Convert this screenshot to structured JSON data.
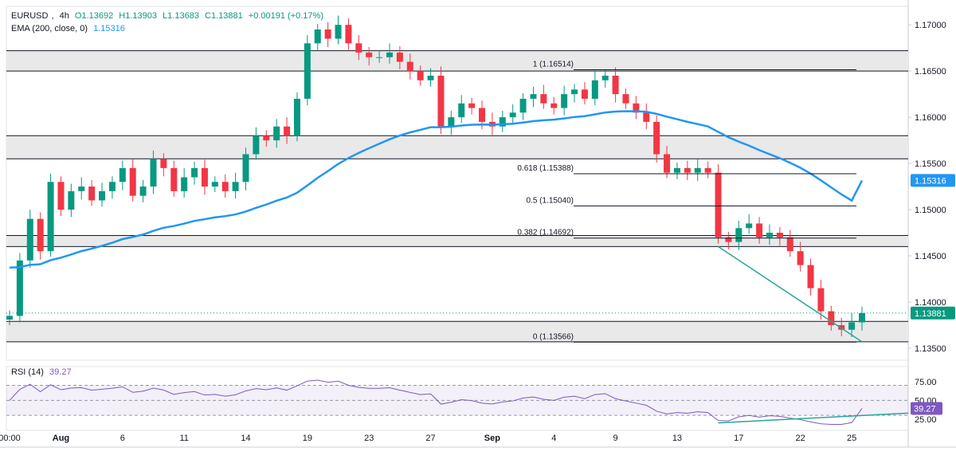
{
  "header": {
    "symbol": "EURUSD",
    "interval": "4h",
    "ohlc_open": "O1.13692",
    "ohlc_high": "H1.13903",
    "ohlc_low": "L1.13683",
    "ohlc_close": "C1.13881",
    "change": "+0.00191 (+0.17%)",
    "ema_label": "EMA (200, close, 0)",
    "ema_value": "1.15316"
  },
  "price_badges": {
    "last_price": "1.13881",
    "ema": "1.15316"
  },
  "rsi_panel": {
    "label": "RSI (14)",
    "value": "39.27",
    "badge": "39.27"
  },
  "colors": {
    "up": "#089981",
    "down": "#f23645",
    "ema": "#2196f3",
    "rsi": "#7e57c2",
    "trendline": "#26a69a",
    "zone_fill": "#e9e9ea"
  },
  "chart_data": [
    {
      "type": "candlestick",
      "title": "EURUSD, 4h",
      "y_ticks": [
        "1.17000",
        "1.16500",
        "1.16000",
        "1.15500",
        "1.15000",
        "1.14500",
        "1.14000",
        "1.13500"
      ],
      "ylim": [
        1.1337,
        1.172
      ],
      "x_ticks": [
        "00:00",
        "Aug",
        "6",
        "11",
        "14",
        "19",
        "23",
        "27",
        "Sep",
        "4",
        "9",
        "13",
        "17",
        "22",
        "25"
      ],
      "grid": false,
      "close_approx": [
        [
          0,
          1.1385
        ],
        [
          1,
          1.1445
        ],
        [
          2,
          1.149
        ],
        [
          3,
          1.1455
        ],
        [
          4,
          1.153
        ],
        [
          5,
          1.15
        ],
        [
          6,
          1.152
        ],
        [
          7,
          1.1525
        ],
        [
          8,
          1.151
        ],
        [
          9,
          1.152
        ],
        [
          10,
          1.153
        ],
        [
          11,
          1.1545
        ],
        [
          12,
          1.1515
        ],
        [
          13,
          1.1525
        ],
        [
          14,
          1.1555
        ],
        [
          15,
          1.1545
        ],
        [
          16,
          1.152
        ],
        [
          17,
          1.1535
        ],
        [
          18,
          1.1545
        ],
        [
          19,
          1.1525
        ],
        [
          20,
          1.153
        ],
        [
          21,
          1.152
        ],
        [
          22,
          1.153
        ],
        [
          23,
          1.156
        ],
        [
          24,
          1.158
        ],
        [
          25,
          1.1575
        ],
        [
          26,
          1.159
        ],
        [
          27,
          1.158
        ],
        [
          28,
          1.162
        ],
        [
          29,
          1.168
        ],
        [
          30,
          1.1695
        ],
        [
          31,
          1.1685
        ],
        [
          32,
          1.17
        ],
        [
          33,
          1.168
        ],
        [
          34,
          1.167
        ],
        [
          35,
          1.1665
        ],
        [
          36,
          1.1665
        ],
        [
          37,
          1.167
        ],
        [
          38,
          1.166
        ],
        [
          39,
          1.165
        ],
        [
          40,
          1.164
        ],
        [
          41,
          1.1645
        ],
        [
          42,
          1.159
        ],
        [
          43,
          1.16
        ],
        [
          44,
          1.1615
        ],
        [
          45,
          1.161
        ],
        [
          46,
          1.1595
        ],
        [
          47,
          1.159
        ],
        [
          48,
          1.16
        ],
        [
          49,
          1.1605
        ],
        [
          50,
          1.162
        ],
        [
          51,
          1.1625
        ],
        [
          52,
          1.1615
        ],
        [
          53,
          1.161
        ],
        [
          54,
          1.1625
        ],
        [
          55,
          1.163
        ],
        [
          56,
          1.162
        ],
        [
          57,
          1.164
        ],
        [
          58,
          1.1645
        ],
        [
          59,
          1.1625
        ],
        [
          60,
          1.1615
        ],
        [
          61,
          1.1605
        ],
        [
          62,
          1.1595
        ],
        [
          63,
          1.156
        ],
        [
          64,
          1.154
        ],
        [
          65,
          1.1545
        ],
        [
          66,
          1.154
        ],
        [
          67,
          1.1545
        ],
        [
          68,
          1.154
        ],
        [
          69,
          1.147
        ],
        [
          70,
          1.1465
        ],
        [
          71,
          1.148
        ],
        [
          72,
          1.1485
        ],
        [
          73,
          1.147
        ],
        [
          74,
          1.1475
        ],
        [
          75,
          1.147
        ],
        [
          76,
          1.1455
        ],
        [
          77,
          1.144
        ],
        [
          78,
          1.1415
        ],
        [
          79,
          1.139
        ],
        [
          80,
          1.1375
        ],
        [
          81,
          1.137
        ],
        [
          82,
          1.1378
        ],
        [
          83,
          1.1388
        ]
      ],
      "ema_200": {
        "name": "EMA (200, close, 0)",
        "last": 1.15316
      },
      "fibonacci": [
        {
          "label": "1 (1.16514)",
          "value": 1.16514
        },
        {
          "label": "0.618 (1.15388)",
          "value": 1.15388
        },
        {
          "label": "0.5 (1.15040)",
          "value": 1.1504
        },
        {
          "label": "0.382 (1.14692)",
          "value": 1.14692
        },
        {
          "label": "0 (1.13566)",
          "value": 1.13566
        }
      ],
      "zones": [
        {
          "from": 1.165,
          "to": 1.1672
        },
        {
          "from": 1.1555,
          "to": 1.158
        },
        {
          "from": 1.146,
          "to": 1.1472
        },
        {
          "from": 1.1357,
          "to": 1.1379
        }
      ],
      "last_price": 1.13881
    },
    {
      "type": "line",
      "title": "RSI (14)",
      "y_ticks": [
        "75.00",
        "50.00",
        "25.00"
      ],
      "levels": [
        70,
        50,
        30
      ],
      "last": 39.27
    }
  ]
}
